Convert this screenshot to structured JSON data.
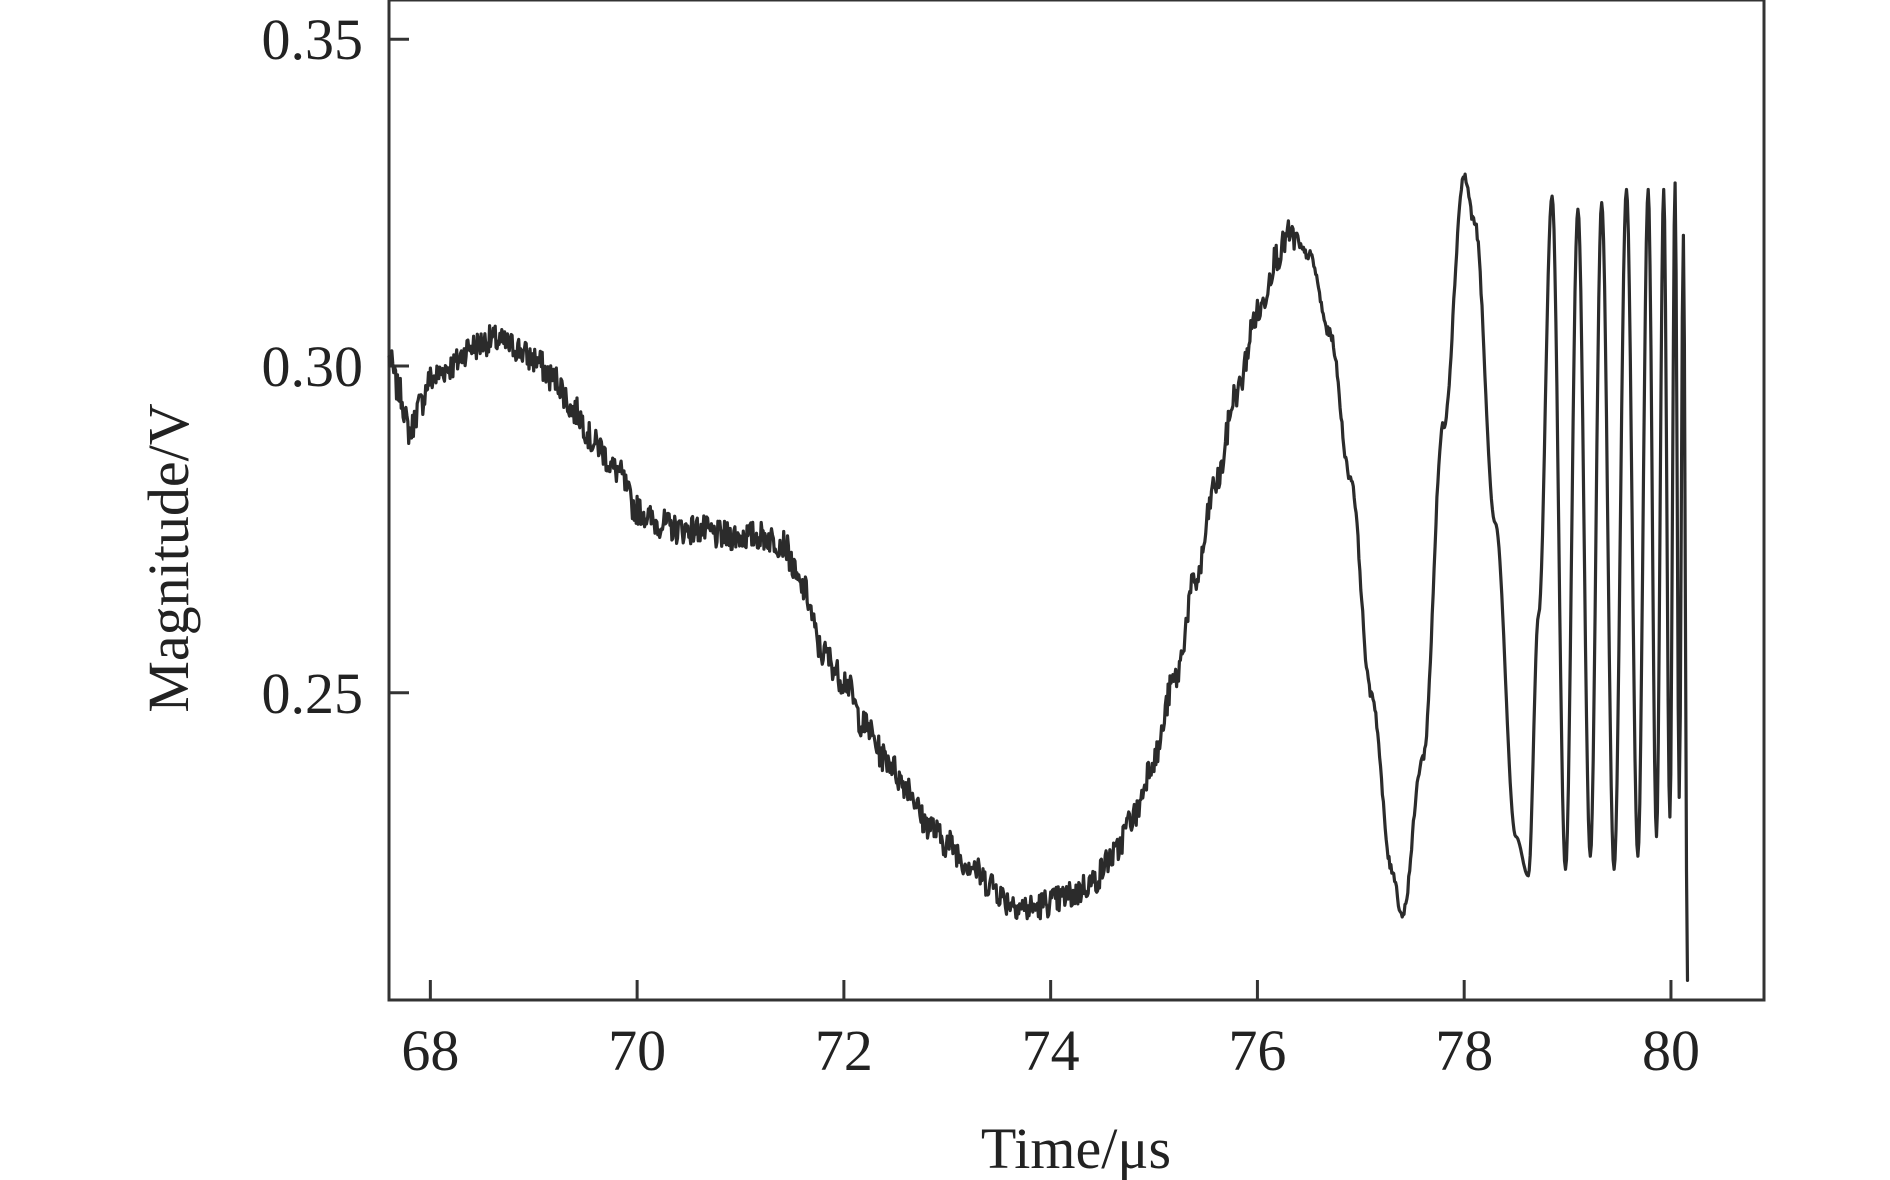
{
  "chart_data": {
    "type": "line",
    "title": "",
    "xlabel": "Time/μs",
    "ylabel": "Magnitude/V",
    "xlim": [
      67.6,
      80.9
    ],
    "ylim": [
      0.203,
      0.356
    ],
    "x_ticks": [
      68,
      70,
      72,
      74,
      76,
      78,
      80
    ],
    "x_tick_labels": [
      "68",
      "70",
      "72",
      "74",
      "76",
      "78",
      "80"
    ],
    "y_ticks": [
      0.25,
      0.3,
      0.35
    ],
    "y_tick_labels": [
      "0.25",
      "0.30",
      "0.35"
    ],
    "grid": false,
    "legend": "none",
    "line_color": "#2b2b2b",
    "axis_color": "#333333",
    "series": [
      {
        "x": [
          67.6,
          67.7,
          67.8,
          67.9,
          68.0,
          68.2,
          68.4,
          68.6,
          68.8,
          69.0,
          69.2,
          69.4,
          69.6,
          69.8,
          70.0,
          70.2,
          70.4,
          70.6,
          70.8,
          71.0,
          71.2,
          71.4,
          71.6,
          71.8,
          72.0,
          72.2,
          72.4,
          72.6,
          72.8,
          73.0,
          73.2,
          73.4,
          73.6,
          73.8,
          74.0,
          74.2,
          74.4,
          74.6,
          74.8,
          75.0,
          75.2,
          75.4,
          75.6,
          75.8,
          76.0,
          76.2,
          76.3,
          76.5,
          76.7,
          76.9,
          77.1,
          77.3,
          77.4,
          77.6,
          77.8,
          78.0,
          78.1,
          78.3,
          78.5,
          78.62,
          78.72,
          78.85,
          78.98,
          79.1,
          79.22,
          79.33,
          79.45,
          79.57,
          79.68,
          79.78,
          79.86,
          79.93,
          79.99,
          80.04,
          80.08,
          80.12,
          80.16
        ],
        "y": [
          0.301,
          0.296,
          0.29,
          0.294,
          0.298,
          0.3,
          0.303,
          0.304,
          0.303,
          0.301,
          0.298,
          0.293,
          0.288,
          0.284,
          0.278,
          0.276,
          0.275,
          0.275,
          0.274,
          0.274,
          0.274,
          0.273,
          0.266,
          0.256,
          0.252,
          0.245,
          0.24,
          0.236,
          0.23,
          0.227,
          0.224,
          0.221,
          0.218,
          0.217,
          0.218,
          0.219,
          0.221,
          0.225,
          0.231,
          0.24,
          0.252,
          0.267,
          0.282,
          0.296,
          0.308,
          0.317,
          0.32,
          0.317,
          0.305,
          0.283,
          0.25,
          0.223,
          0.216,
          0.24,
          0.291,
          0.329,
          0.322,
          0.276,
          0.228,
          0.222,
          0.262,
          0.326,
          0.223,
          0.324,
          0.225,
          0.325,
          0.223,
          0.327,
          0.225,
          0.327,
          0.228,
          0.327,
          0.231,
          0.328,
          0.234,
          0.32,
          0.206
        ]
      }
    ]
  }
}
